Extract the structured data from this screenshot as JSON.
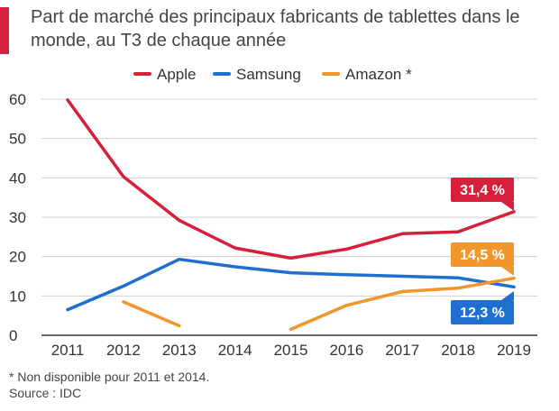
{
  "chart_data": {
    "type": "line",
    "title": "Part de marché des principaux fabricants de tablettes dans le monde, au T3 de chaque année",
    "xlabel": "",
    "ylabel": "",
    "ylim": [
      0,
      60
    ],
    "yticks": [
      0,
      10,
      20,
      30,
      40,
      50,
      60
    ],
    "x": [
      2011,
      2012,
      2013,
      2014,
      2015,
      2016,
      2017,
      2018,
      2019
    ],
    "x_labels": [
      "2011",
      "2012",
      "2013",
      "2014",
      "2015",
      "2016",
      "2017",
      "2018",
      "2019"
    ],
    "grid": "horizontal",
    "legend_position": "top",
    "series": [
      {
        "name": "Apple",
        "color": "#d6203b",
        "values": [
          59.8,
          40.3,
          29.2,
          22.2,
          19.6,
          21.9,
          25.8,
          26.3,
          31.4
        ],
        "callout": "31,4 %"
      },
      {
        "name": "Samsung",
        "color": "#1f6fd1",
        "values": [
          6.5,
          12.5,
          19.3,
          17.4,
          15.9,
          15.4,
          15.0,
          14.6,
          12.3
        ],
        "callout": "12,3 %"
      },
      {
        "name": "Amazon *",
        "color": "#f0962d",
        "values": [
          null,
          8.5,
          2.4,
          null,
          1.5,
          7.6,
          11.1,
          12.0,
          14.5
        ],
        "callout": "14,5 %"
      }
    ]
  },
  "footnote": "* Non disponible pour 2011 et 2014.",
  "source": "Source : IDC"
}
